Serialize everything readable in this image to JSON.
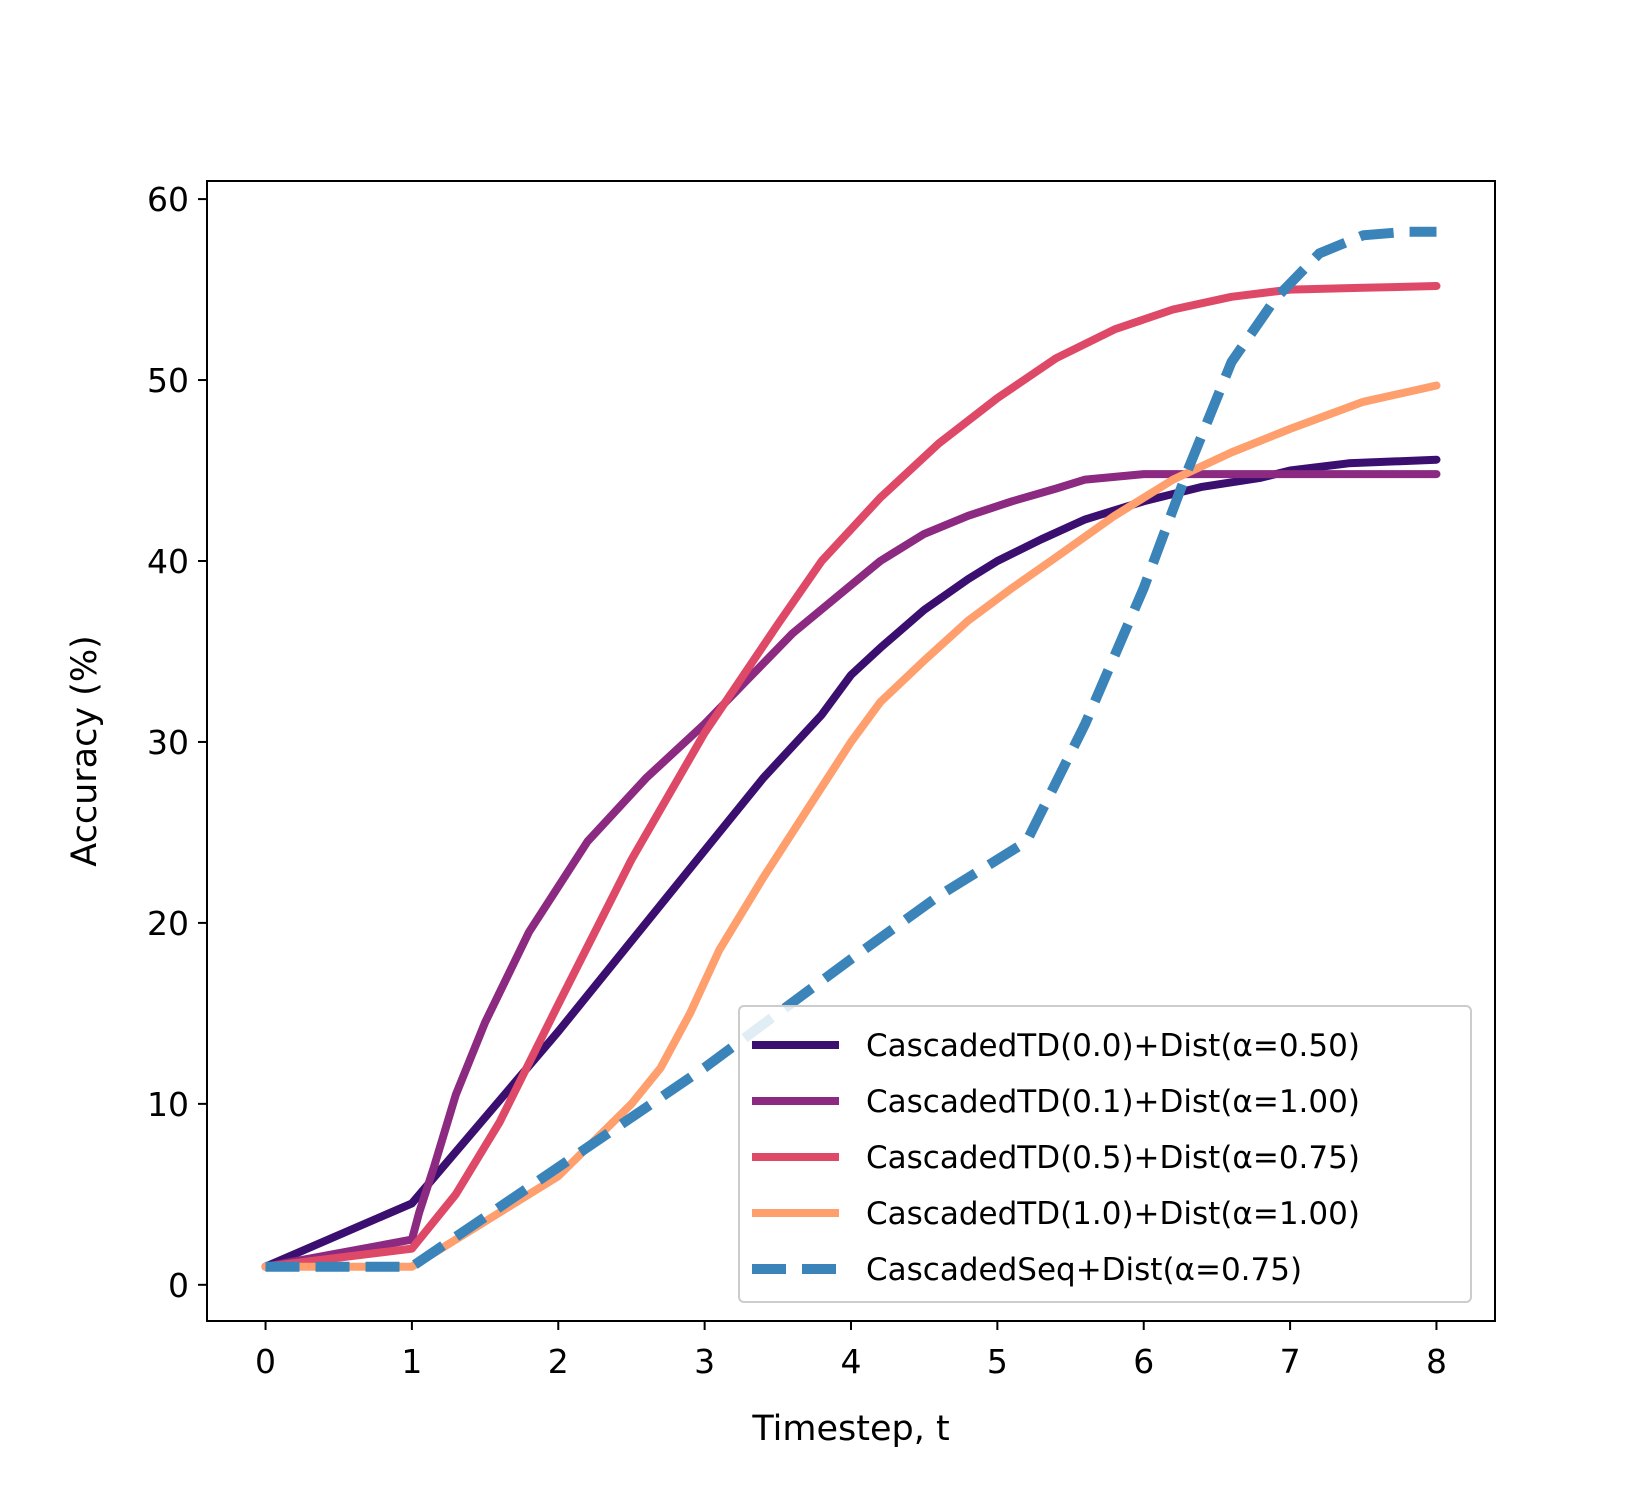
{
  "chart_data": {
    "type": "line",
    "title": "",
    "xlabel": "Timestep, t",
    "ylabel": "Accuracy (%)",
    "xlim": [
      -0.4,
      8.4
    ],
    "ylim": [
      -2,
      61
    ],
    "xticks": [
      "0",
      "1",
      "2",
      "3",
      "4",
      "5",
      "6",
      "7",
      "8"
    ],
    "yticks": [
      "0",
      "10",
      "20",
      "30",
      "40",
      "50",
      "60"
    ],
    "grid": false,
    "legend_position": "bottom-right",
    "series": [
      {
        "name": "CascadedTD(0.0)+Dist(α=0.50)",
        "color": "#3b0f70",
        "style": "solid",
        "x": [
          0,
          1,
          2,
          3,
          3.4,
          3.8,
          4,
          4.2,
          4.5,
          4.8,
          5,
          5.3,
          5.6,
          6,
          6.4,
          6.8,
          7,
          7.4,
          8
        ],
        "y": [
          1,
          4.5,
          14,
          24,
          28,
          31.5,
          33.7,
          35.2,
          37.3,
          39,
          40,
          41.2,
          42.3,
          43.3,
          44.1,
          44.6,
          45,
          45.4,
          45.6
        ]
      },
      {
        "name": "CascadedTD(0.1)+Dist(α=1.00)",
        "color": "#8c2981",
        "style": "solid",
        "x": [
          0,
          1,
          1.05,
          1.15,
          1.3,
          1.5,
          1.8,
          2.2,
          2.6,
          3,
          3.3,
          3.6,
          3.9,
          4.2,
          4.5,
          4.8,
          5.1,
          5.4,
          5.6,
          6,
          6.5,
          7,
          8
        ],
        "y": [
          1,
          2.5,
          4,
          6.5,
          10.5,
          14.5,
          19.5,
          24.5,
          28,
          31,
          33.5,
          36,
          38,
          40,
          41.5,
          42.5,
          43.3,
          44,
          44.5,
          44.8,
          44.8,
          44.8,
          44.8
        ]
      },
      {
        "name": "CascadedTD(0.5)+Dist(α=0.75)",
        "color": "#de4968",
        "style": "solid",
        "x": [
          0,
          1,
          1.3,
          1.6,
          2,
          2.5,
          3,
          3.5,
          3.8,
          4.2,
          4.6,
          5,
          5.4,
          5.8,
          6.2,
          6.6,
          7,
          7.5,
          8
        ],
        "y": [
          1,
          2,
          5,
          9,
          15.5,
          23.5,
          30.5,
          36.5,
          40,
          43.5,
          46.5,
          49,
          51.2,
          52.8,
          53.9,
          54.6,
          55,
          55.1,
          55.2
        ]
      },
      {
        "name": "CascadedTD(1.0)+Dist(α=1.00)",
        "color": "#fe9f6d",
        "style": "solid",
        "x": [
          0,
          1,
          1.5,
          2,
          2.5,
          2.7,
          2.9,
          3.1,
          3.4,
          3.8,
          4,
          4.2,
          4.5,
          4.8,
          5.1,
          5.4,
          5.8,
          6.2,
          6.6,
          7,
          7.5,
          8
        ],
        "y": [
          1,
          1,
          3.5,
          6,
          10,
          12,
          15,
          18.5,
          22.5,
          27.5,
          30,
          32.2,
          34.5,
          36.7,
          38.5,
          40.2,
          42.5,
          44.5,
          46,
          47.3,
          48.8,
          49.7
        ]
      },
      {
        "name": "CascadedSeq+Dist(α=0.75)",
        "color": "#3b84b9",
        "style": "dashed",
        "x": [
          0,
          1,
          2,
          3,
          4,
          4.6,
          5.2,
          5.6,
          6,
          6.3,
          6.6,
          6.9,
          7.2,
          7.5,
          7.8,
          8
        ],
        "y": [
          1,
          1,
          6.5,
          12,
          18,
          21.5,
          24.5,
          31,
          38.5,
          45,
          51,
          54.5,
          57,
          58,
          58.2,
          58.2
        ]
      }
    ]
  }
}
